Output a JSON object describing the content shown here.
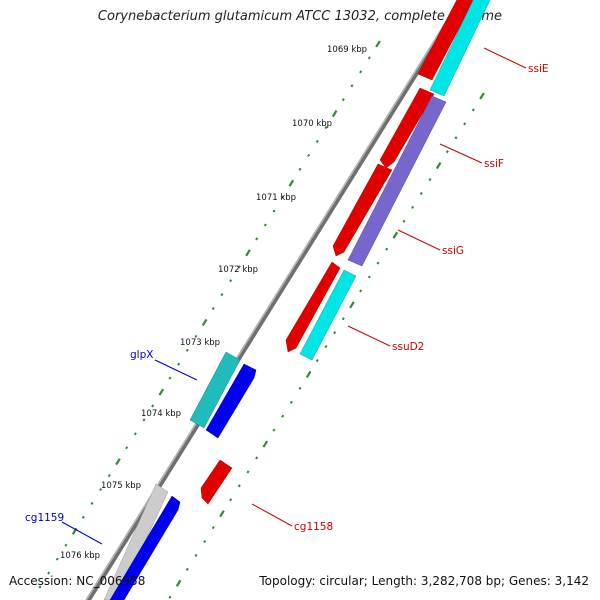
{
  "title": "Corynebacterium glutamicum ATCC 13032, complete genome",
  "footer": {
    "accession": "Accession: NC_006958",
    "summary": "Topology: circular; Length: 3,282,708 bp; Genes: 3,142"
  },
  "ticks": [
    "1069 kbp",
    "1070 kbp",
    "1071 kbp",
    "1072 kbp",
    "1073 kbp",
    "1074 kbp",
    "1075 kbp",
    "1076 kbp"
  ],
  "gene_labels": [
    {
      "text": "ssiE",
      "color": "#cc0000"
    },
    {
      "text": "ssiF",
      "color": "#cc0000"
    },
    {
      "text": "ssiG",
      "color": "#cc0000"
    },
    {
      "text": "ssuD2",
      "color": "#cc0000"
    },
    {
      "text": "glpX",
      "color": "#0000cc"
    },
    {
      "text": "cg1158",
      "color": "#cc0000"
    },
    {
      "text": "cg1159",
      "color": "#0000cc"
    }
  ],
  "colors": {
    "backbone": "#7a7a7a",
    "forward_gene": "#ee0000",
    "reverse_gene": "#0000ee",
    "forward_cds": "#00e5e5",
    "reverse_cds": "#7766cc",
    "glpX_cds": "#22bbbb",
    "cg1159_cds": "#cccccc",
    "tick": "#2e8b2e"
  }
}
